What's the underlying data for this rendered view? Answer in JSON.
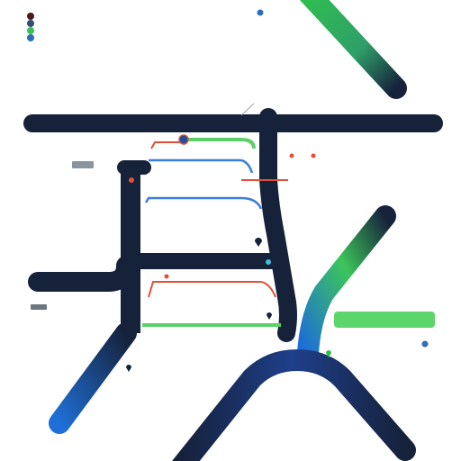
{
  "legend": {
    "title": "",
    "items": [
      {
        "name": "",
        "color": "#4b1a1a"
      },
      {
        "name": "",
        "color": "#2f4f6a"
      },
      {
        "name": "",
        "color": "#3fbe5a"
      },
      {
        "name": "",
        "color": "#2c6fb5"
      }
    ]
  },
  "colors": {
    "track_dark": "#16213a",
    "track_blue": "#1e6fd6",
    "track_green": "#3cc55b",
    "line_red": "#e0503a",
    "line_blue": "#3a7fd8",
    "line_green": "#5ccf6a",
    "button_green": "#5cd66c",
    "button_gray": "#6b7683"
  },
  "labels": {
    "top_left": "",
    "top_center": "",
    "mid_left": "",
    "mid_center": "",
    "right_top": "",
    "right_mid": "",
    "right_low": "",
    "bottom_left": "",
    "bottom_right": "",
    "green_button": "",
    "gray_button": ""
  },
  "icons": {
    "marker_pin": "map-pin-icon",
    "node": "node-icon"
  }
}
